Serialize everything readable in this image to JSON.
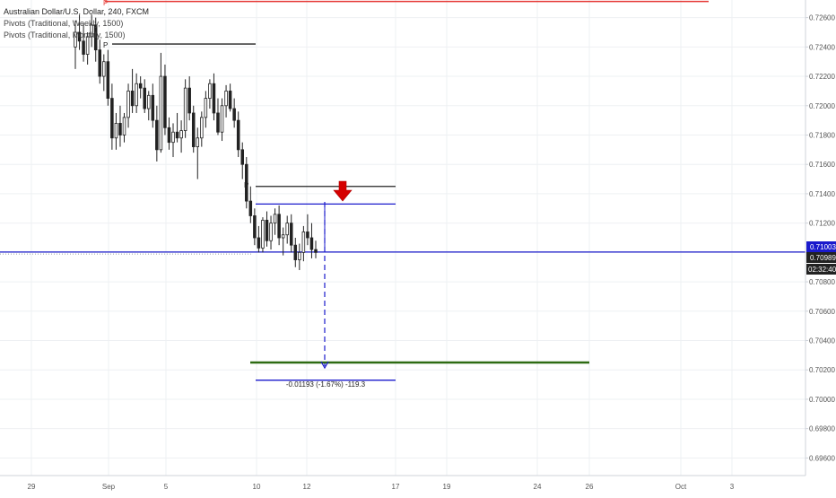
{
  "chart_data": {
    "type": "candlestick",
    "symbol": "Australian Dollar/U.S. Dollar, 240, FXCM",
    "indicators": [
      "Pivots (Traditional, Weekly, 1500)",
      "Pivots (Traditional, Monthly, 1500)"
    ],
    "y_range": [
      0.6948,
      0.7272
    ],
    "y_ticks": [
      "0.72600",
      "0.72400",
      "0.72200",
      "0.72000",
      "0.71800",
      "0.71600",
      "0.71400",
      "0.71200",
      "0.71000",
      "0.70800",
      "0.70600",
      "0.70400",
      "0.70200",
      "0.70000",
      "0.69800",
      "0.69600"
    ],
    "x_ticks": [
      "29",
      "Sep",
      "5",
      "10",
      "12",
      "17",
      "19",
      "24",
      "26",
      "Oct",
      "3"
    ],
    "current_price": "0.71003",
    "price_label_2": "0.70989",
    "countdown": "02:32:40",
    "pivot_marker": "P",
    "measure_label": "-0.01193 (-1.67%) -119.3",
    "levels": [
      {
        "name": "monthly-pivot",
        "price": 0.7271,
        "color": "#e53935"
      },
      {
        "name": "weekly-pivot-old",
        "price": 0.7242,
        "color": "#222222"
      },
      {
        "name": "weekly-pivot",
        "price": 0.7145,
        "color": "#222222"
      },
      {
        "name": "entry",
        "price": 0.7133,
        "color": "#1a1acc"
      },
      {
        "name": "current",
        "price": 0.71003,
        "color": "#1a1acc"
      },
      {
        "name": "support",
        "price": 0.7025,
        "color": "#2e6b12"
      },
      {
        "name": "target",
        "price": 0.7013,
        "color": "#1a1acc"
      }
    ],
    "candles": [
      [
        0.724,
        0.7258,
        0.7225,
        0.725
      ],
      [
        0.725,
        0.7262,
        0.7238,
        0.7244
      ],
      [
        0.7244,
        0.7256,
        0.723,
        0.7235
      ],
      [
        0.7235,
        0.725,
        0.7228,
        0.7247
      ],
      [
        0.7247,
        0.7262,
        0.724,
        0.7255
      ],
      [
        0.7255,
        0.726,
        0.723,
        0.7238
      ],
      [
        0.7238,
        0.7245,
        0.7215,
        0.722
      ],
      [
        0.722,
        0.7235,
        0.721,
        0.723
      ],
      [
        0.723,
        0.7238,
        0.72,
        0.7205
      ],
      [
        0.7205,
        0.7215,
        0.717,
        0.7178
      ],
      [
        0.7178,
        0.7195,
        0.717,
        0.7188
      ],
      [
        0.7188,
        0.72,
        0.7172,
        0.718
      ],
      [
        0.718,
        0.7195,
        0.7175,
        0.7192
      ],
      [
        0.7192,
        0.7215,
        0.7185,
        0.721
      ],
      [
        0.721,
        0.7225,
        0.7195,
        0.72
      ],
      [
        0.72,
        0.7222,
        0.7195,
        0.7215
      ],
      [
        0.7215,
        0.722,
        0.7205,
        0.7212
      ],
      [
        0.7212,
        0.7218,
        0.7195,
        0.7198
      ],
      [
        0.7198,
        0.721,
        0.719,
        0.7207
      ],
      [
        0.7207,
        0.7215,
        0.7185,
        0.719
      ],
      [
        0.719,
        0.72,
        0.7162,
        0.717
      ],
      [
        0.717,
        0.7236,
        0.7168,
        0.722
      ],
      [
        0.722,
        0.7228,
        0.718,
        0.7185
      ],
      [
        0.7185,
        0.7192,
        0.717,
        0.7175
      ],
      [
        0.7175,
        0.7188,
        0.7165,
        0.7182
      ],
      [
        0.7182,
        0.7195,
        0.7175,
        0.7178
      ],
      [
        0.7178,
        0.719,
        0.7168,
        0.7183
      ],
      [
        0.7183,
        0.7218,
        0.7178,
        0.7212
      ],
      [
        0.7212,
        0.722,
        0.719,
        0.7195
      ],
      [
        0.7195,
        0.72,
        0.7168,
        0.7172
      ],
      [
        0.7172,
        0.7185,
        0.715,
        0.7178
      ],
      [
        0.7178,
        0.7196,
        0.7172,
        0.7192
      ],
      [
        0.7192,
        0.721,
        0.7185,
        0.7205
      ],
      [
        0.7205,
        0.7218,
        0.7198,
        0.7215
      ],
      [
        0.7215,
        0.7222,
        0.719,
        0.7195
      ],
      [
        0.7195,
        0.7205,
        0.718,
        0.7182
      ],
      [
        0.7182,
        0.7205,
        0.7176,
        0.72
      ],
      [
        0.72,
        0.7214,
        0.7192,
        0.721
      ],
      [
        0.721,
        0.7215,
        0.7196,
        0.7198
      ],
      [
        0.7198,
        0.7205,
        0.7185,
        0.719
      ],
      [
        0.719,
        0.7196,
        0.7165,
        0.717
      ],
      [
        0.717,
        0.7175,
        0.715,
        0.716
      ],
      [
        0.716,
        0.7165,
        0.713,
        0.7135
      ],
      [
        0.7135,
        0.7145,
        0.712,
        0.7125
      ],
      [
        0.7125,
        0.713,
        0.7105,
        0.711
      ],
      [
        0.711,
        0.7118,
        0.71,
        0.7103
      ],
      [
        0.7103,
        0.7124,
        0.71,
        0.7122
      ],
      [
        0.7122,
        0.7128,
        0.7104,
        0.7108
      ],
      [
        0.7108,
        0.7125,
        0.7102,
        0.712
      ],
      [
        0.712,
        0.713,
        0.7112,
        0.7126
      ],
      [
        0.7126,
        0.7132,
        0.7105,
        0.711
      ],
      [
        0.711,
        0.7117,
        0.7098,
        0.7112
      ],
      [
        0.7112,
        0.7125,
        0.7106,
        0.712
      ],
      [
        0.712,
        0.7126,
        0.71,
        0.7105
      ],
      [
        0.7105,
        0.711,
        0.709,
        0.7095
      ],
      [
        0.7095,
        0.7106,
        0.7088,
        0.71
      ],
      [
        0.71,
        0.7118,
        0.7094,
        0.7114
      ],
      [
        0.7114,
        0.7126,
        0.7105,
        0.711
      ],
      [
        0.711,
        0.712,
        0.7096,
        0.7102
      ],
      [
        0.7102,
        0.7108,
        0.7096,
        0.71
      ]
    ]
  }
}
